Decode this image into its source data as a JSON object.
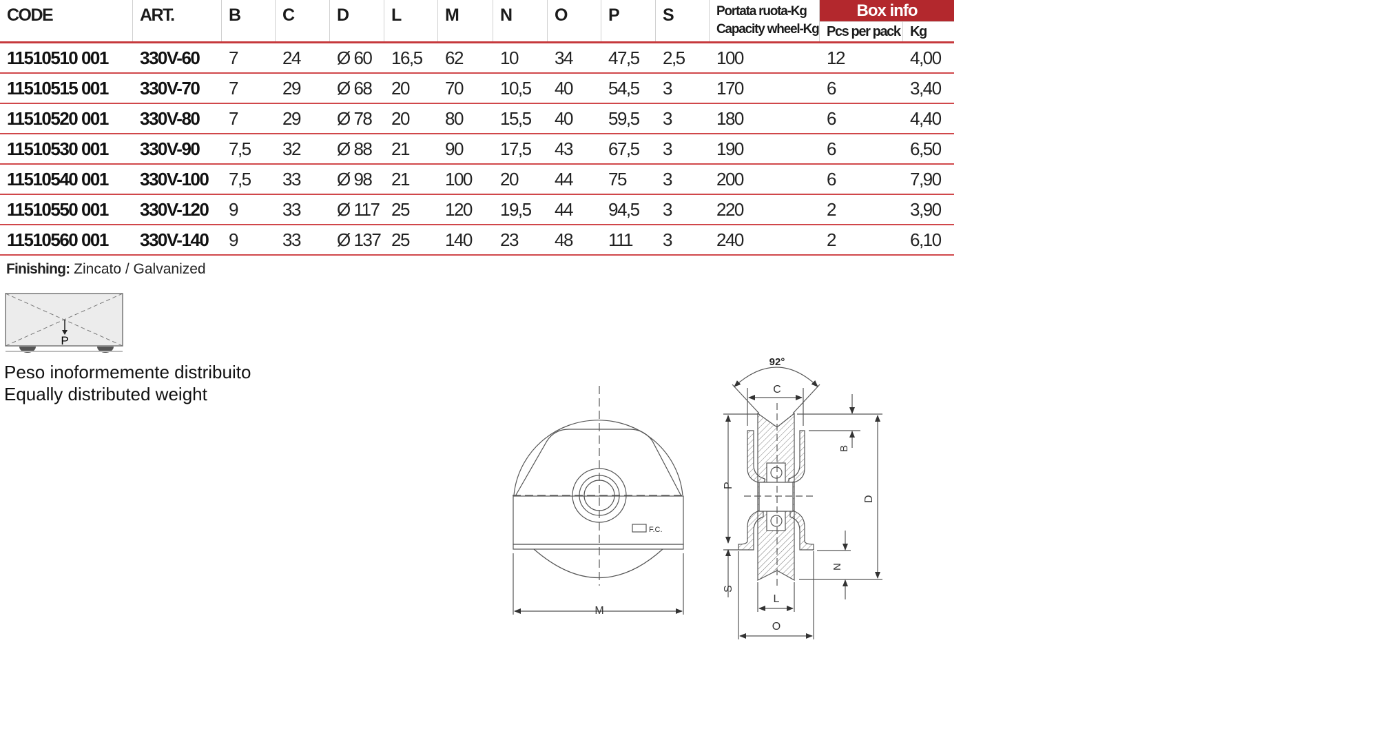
{
  "table": {
    "columns": [
      "CODE",
      "ART.",
      "B",
      "C",
      "D",
      "L",
      "M",
      "N",
      "O",
      "P",
      "S"
    ],
    "capacity_header": [
      "Portata ruota-Kg",
      "Capacity wheel-Kg"
    ],
    "box_info": {
      "title": "Box info",
      "pcs": "Pcs per pack",
      "kg": "Kg"
    },
    "rows": [
      [
        "11510510 001",
        "330V-60",
        "7",
        "24",
        "Ø 60",
        "16,5",
        "62",
        "10",
        "34",
        "47,5",
        "2,5",
        "100",
        "12",
        "4,00"
      ],
      [
        "11510515 001",
        "330V-70",
        "7",
        "29",
        "Ø 68",
        "20",
        "70",
        "10,5",
        "40",
        "54,5",
        "3",
        "170",
        "6",
        "3,40"
      ],
      [
        "11510520 001",
        "330V-80",
        "7",
        "29",
        "Ø 78",
        "20",
        "80",
        "15,5",
        "40",
        "59,5",
        "3",
        "180",
        "6",
        "4,40"
      ],
      [
        "11510530 001",
        "330V-90",
        "7,5",
        "32",
        "Ø 88",
        "21",
        "90",
        "17,5",
        "43",
        "67,5",
        "3",
        "190",
        "6",
        "6,50"
      ],
      [
        "11510540 001",
        "330V-100",
        "7,5",
        "33",
        "Ø 98",
        "21",
        "100",
        "20",
        "44",
        "75",
        "3",
        "200",
        "6",
        "7,90"
      ],
      [
        "11510550 001",
        "330V-120",
        "9",
        "33",
        "Ø 117",
        "25",
        "120",
        "19,5",
        "44",
        "94,5",
        "3",
        "220",
        "2",
        "3,90"
      ],
      [
        "11510560 001",
        "330V-140",
        "9",
        "33",
        "Ø 137",
        "25",
        "140",
        "23",
        "48",
        "111",
        "3",
        "240",
        "2",
        "6,10"
      ]
    ],
    "accent_color": "#b3282d",
    "rule_color": "#d0474a"
  },
  "finishing": {
    "label": "Finishing:",
    "value": "Zincato / Galvanized"
  },
  "load_diagram": {
    "label": "P",
    "line1": "Peso inoformemente distribuito",
    "line2": "Equally distributed weight"
  },
  "drawing": {
    "angle": "92°",
    "labels": {
      "C": "C",
      "B": "B",
      "P": "P",
      "D": "D",
      "S": "S",
      "N": "N",
      "L": "L",
      "O": "O",
      "M": "M"
    },
    "logo_text": "F.C."
  }
}
